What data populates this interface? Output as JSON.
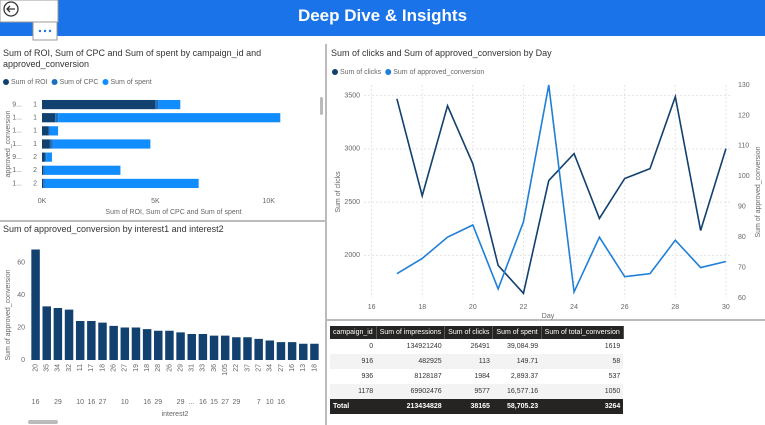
{
  "header": {
    "title": "Deep Dive & Insights"
  },
  "chart_data": [
    {
      "type": "bar",
      "orientation": "horizontal",
      "stacked": true,
      "title": "Sum of ROI, Sum of CPC and Sum of spent by campaign_id and approved_conversion",
      "xlabel": "Sum of ROI, Sum of CPC and Sum of spent",
      "ylabel": "approved_conversion",
      "outer_categories": [
        "9...",
        "1...",
        "1...",
        "1...",
        "9...",
        "1...",
        "1..."
      ],
      "categories": [
        "1",
        "1",
        "1",
        "1",
        "2",
        "2",
        "2"
      ],
      "series": [
        {
          "name": "Sum of ROI",
          "color": "#12416f",
          "values": [
            5000,
            580,
            300,
            350,
            130,
            50,
            50
          ]
        },
        {
          "name": "Sum of CPC",
          "color": "#1d6fbf",
          "values": [
            150,
            130,
            30,
            130,
            60,
            60,
            60
          ]
        },
        {
          "name": "Sum of spent",
          "color": "#118dff",
          "values": [
            950,
            9800,
            380,
            4300,
            250,
            3350,
            6800
          ]
        }
      ],
      "xlim": [
        0,
        11600
      ],
      "xticks": [
        {
          "value": 0,
          "label": "0K"
        },
        {
          "value": 5000,
          "label": "5K"
        },
        {
          "value": 10000,
          "label": "10K"
        }
      ],
      "legend": "top-left"
    },
    {
      "type": "bar",
      "orientation": "vertical",
      "title": "Sum of approved_conversion by interest1 and interest2",
      "xlabel": "interest2",
      "ylabel": "Sum of approved_conversion",
      "categories": [
        "20",
        "35",
        "34",
        "32",
        "11",
        "17",
        "18",
        "26",
        "27",
        "19",
        "18",
        "28",
        "26",
        "29",
        "31",
        "33",
        "36",
        "105",
        "22",
        "37",
        "27",
        "34",
        "27",
        "16",
        "13",
        "18"
      ],
      "outer_categories": [
        "16",
        null,
        "29",
        null,
        "10",
        "16",
        "27",
        null,
        "10",
        null,
        "16",
        "29",
        null,
        "29",
        "...",
        "16",
        "15",
        "27",
        "29",
        null,
        "7",
        "10",
        "16",
        null,
        null,
        null
      ],
      "values": [
        68,
        33,
        32,
        31,
        24,
        24,
        23,
        21,
        20,
        20,
        19,
        18,
        18,
        17,
        16,
        16,
        15,
        15,
        14,
        14,
        13,
        12,
        11,
        11,
        10,
        10
      ],
      "color": "#12416f",
      "ylim": [
        0,
        72
      ],
      "yticks": [
        0,
        20,
        40,
        60
      ]
    },
    {
      "type": "line",
      "title": "Sum of clicks and Sum of approved_conversion by Day",
      "xlabel": "Day",
      "ylabel": "Sum of clicks",
      "y2label": "Sum of approved_conversion",
      "x": [
        17,
        18,
        19,
        20,
        21,
        22,
        23,
        24,
        25,
        26,
        27,
        28,
        29,
        30
      ],
      "series": [
        {
          "name": "Sum of clicks",
          "color": "#12416f",
          "values": [
            3470,
            2560,
            3405,
            2860,
            1906,
            1644,
            2703,
            2956,
            2347,
            2722,
            2815,
            3490,
            2234,
            3003
          ]
        },
        {
          "name": "Sum of approved_conversion",
          "color": "#1f7fd8",
          "axis": "y2",
          "values": [
            68,
            73,
            80,
            84,
            63,
            85,
            130,
            62,
            80,
            67,
            68,
            79,
            70,
            72
          ]
        }
      ],
      "xlim": [
        15.7,
        30.2
      ],
      "xticks": [
        16,
        18,
        20,
        22,
        24,
        26,
        28,
        30
      ],
      "ylim": [
        1600,
        3600
      ],
      "yticks": [
        2000,
        2500,
        3000,
        3500
      ],
      "y2lim": [
        60,
        130
      ],
      "y2ticks": [
        60,
        70,
        80,
        90,
        100,
        110,
        120,
        130
      ],
      "grid": true,
      "legend": "top-left"
    }
  ],
  "table": {
    "columns": [
      "campaign_id",
      "Sum of impressions",
      "Sum of clicks",
      "Sum of spent",
      "Sum of total_conversion"
    ],
    "rows": [
      [
        "0",
        "134921240",
        "26491",
        "39,084.99",
        "1619"
      ],
      [
        "916",
        "482925",
        "113",
        "149.71",
        "58"
      ],
      [
        "936",
        "8128187",
        "1984",
        "2,893.37",
        "537"
      ],
      [
        "1178",
        "69902476",
        "9577",
        "16,577.16",
        "1050"
      ]
    ],
    "total": [
      "Total",
      "213434828",
      "38165",
      "58,705.23",
      "3264"
    ]
  }
}
